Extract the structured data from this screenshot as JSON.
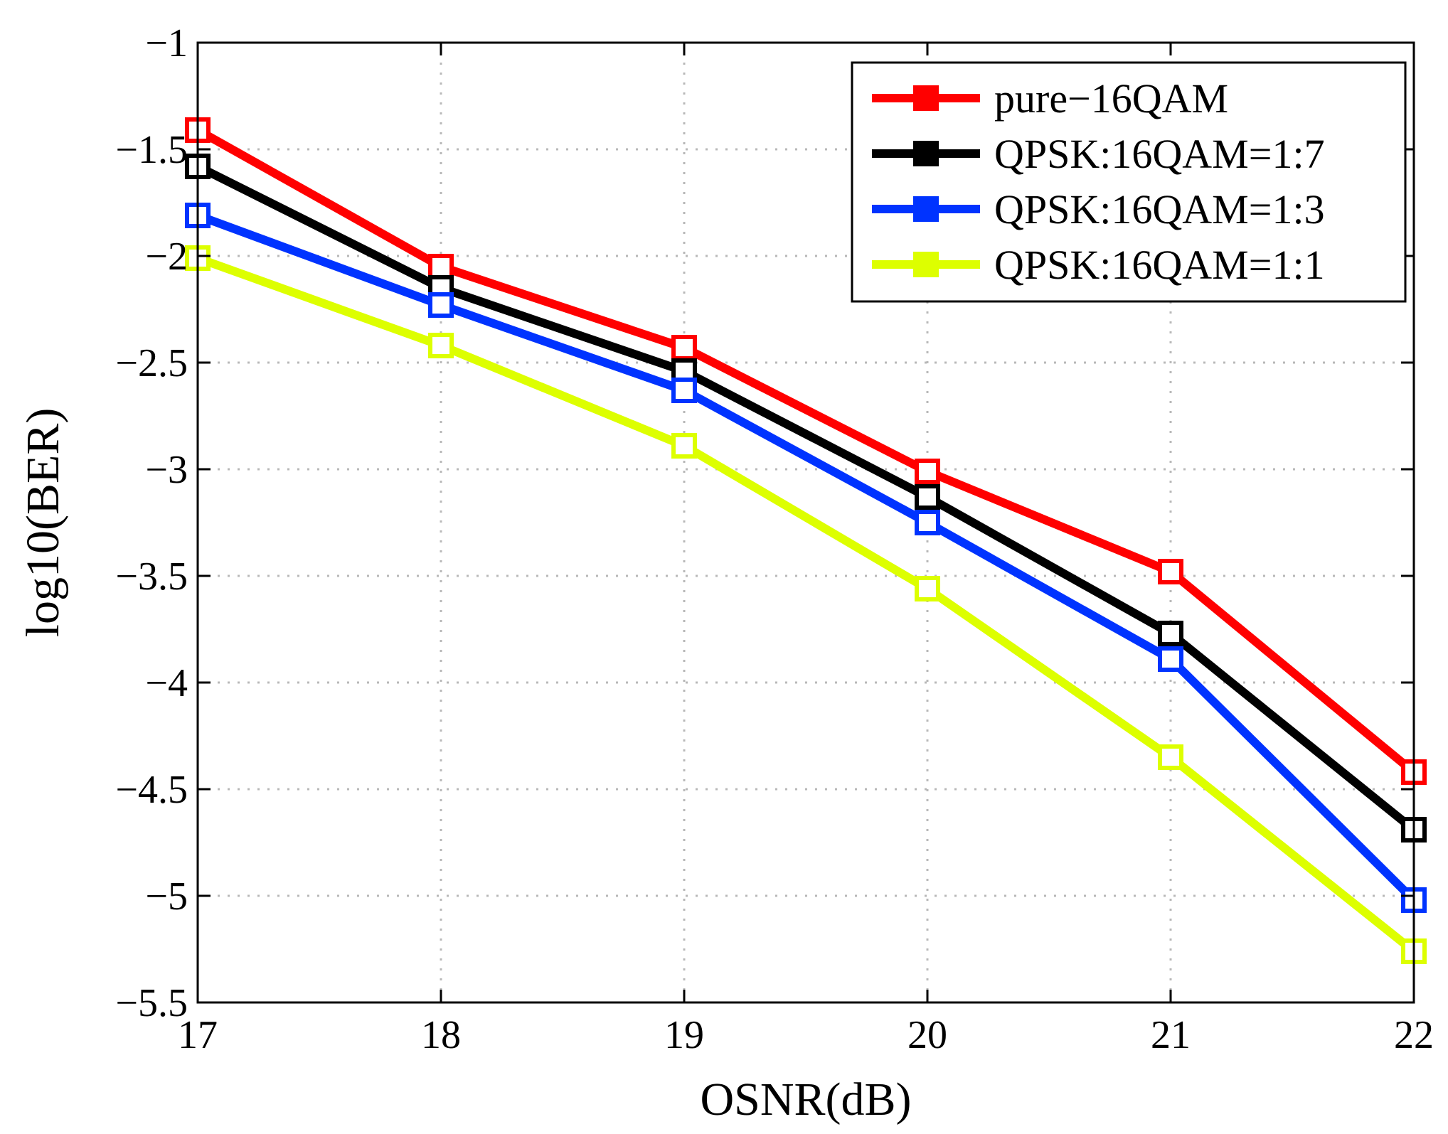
{
  "chart_data": {
    "type": "line",
    "title": "",
    "xlabel": "OSNR(dB)",
    "ylabel": "log10(BER)",
    "x": [
      17,
      18,
      19,
      20,
      21,
      22
    ],
    "xlim": [
      17,
      22
    ],
    "ylim": [
      -5.5,
      -1
    ],
    "xticks": [
      17,
      18,
      19,
      20,
      21,
      22
    ],
    "yticks": [
      -5.5,
      -5,
      -4.5,
      -4,
      -3.5,
      -3,
      -2.5,
      -2,
      -1.5,
      -1
    ],
    "xtick_labels": [
      "17",
      "18",
      "19",
      "20",
      "21",
      "22"
    ],
    "ytick_labels": [
      "−5.5",
      "−5",
      "−4.5",
      "−4",
      "−3.5",
      "−3",
      "−2.5",
      "−2",
      "−1.5",
      "−1"
    ],
    "grid": true,
    "legend_position": "top-right",
    "marker": "square",
    "series": [
      {
        "name": "pure−16QAM",
        "color": "#ff0000",
        "values": [
          -1.41,
          -2.05,
          -2.43,
          -3.01,
          -3.48,
          -4.42
        ]
      },
      {
        "name": "QPSK:16QAM=1:7",
        "color": "#000000",
        "values": [
          -1.58,
          -2.15,
          -2.54,
          -3.13,
          -3.77,
          -4.69
        ]
      },
      {
        "name": "QPSK:16QAM=1:3",
        "color": "#0033ff",
        "values": [
          -1.81,
          -2.23,
          -2.63,
          -3.25,
          -3.89,
          -5.02
        ]
      },
      {
        "name": "QPSK:16QAM=1:1",
        "color": "#ddff00",
        "values": [
          -2.01,
          -2.42,
          -2.89,
          -3.56,
          -4.35,
          -5.26
        ]
      }
    ]
  }
}
